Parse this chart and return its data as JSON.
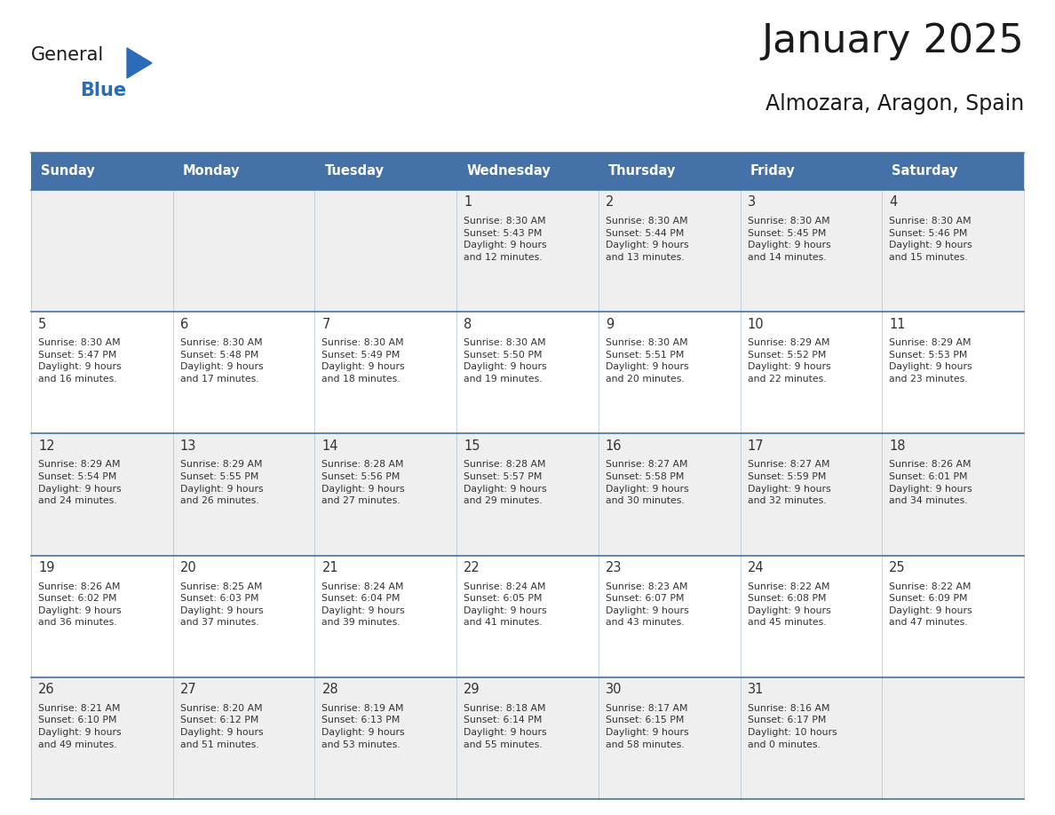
{
  "title": "January 2025",
  "subtitle": "Almozara, Aragon, Spain",
  "days_of_week": [
    "Sunday",
    "Monday",
    "Tuesday",
    "Wednesday",
    "Thursday",
    "Friday",
    "Saturday"
  ],
  "header_bg": "#4472a8",
  "header_text": "#ffffff",
  "cell_bg_odd": "#efefef",
  "cell_bg_even": "#ffffff",
  "cell_text": "#333333",
  "grid_line_color": "#4472a8",
  "title_color": "#1a1a1a",
  "subtitle_color": "#1a1a1a",
  "logo_general_color": "#1a1a1a",
  "logo_blue_color": "#2b6cb8",
  "logo_triangle_color": "#2b6cb8",
  "calendar": [
    [
      null,
      null,
      null,
      1,
      2,
      3,
      4
    ],
    [
      5,
      6,
      7,
      8,
      9,
      10,
      11
    ],
    [
      12,
      13,
      14,
      15,
      16,
      17,
      18
    ],
    [
      19,
      20,
      21,
      22,
      23,
      24,
      25
    ],
    [
      26,
      27,
      28,
      29,
      30,
      31,
      null
    ]
  ],
  "sunrise_data": {
    "1": "Sunrise: 8:30 AM\nSunset: 5:43 PM\nDaylight: 9 hours\nand 12 minutes.",
    "2": "Sunrise: 8:30 AM\nSunset: 5:44 PM\nDaylight: 9 hours\nand 13 minutes.",
    "3": "Sunrise: 8:30 AM\nSunset: 5:45 PM\nDaylight: 9 hours\nand 14 minutes.",
    "4": "Sunrise: 8:30 AM\nSunset: 5:46 PM\nDaylight: 9 hours\nand 15 minutes.",
    "5": "Sunrise: 8:30 AM\nSunset: 5:47 PM\nDaylight: 9 hours\nand 16 minutes.",
    "6": "Sunrise: 8:30 AM\nSunset: 5:48 PM\nDaylight: 9 hours\nand 17 minutes.",
    "7": "Sunrise: 8:30 AM\nSunset: 5:49 PM\nDaylight: 9 hours\nand 18 minutes.",
    "8": "Sunrise: 8:30 AM\nSunset: 5:50 PM\nDaylight: 9 hours\nand 19 minutes.",
    "9": "Sunrise: 8:30 AM\nSunset: 5:51 PM\nDaylight: 9 hours\nand 20 minutes.",
    "10": "Sunrise: 8:29 AM\nSunset: 5:52 PM\nDaylight: 9 hours\nand 22 minutes.",
    "11": "Sunrise: 8:29 AM\nSunset: 5:53 PM\nDaylight: 9 hours\nand 23 minutes.",
    "12": "Sunrise: 8:29 AM\nSunset: 5:54 PM\nDaylight: 9 hours\nand 24 minutes.",
    "13": "Sunrise: 8:29 AM\nSunset: 5:55 PM\nDaylight: 9 hours\nand 26 minutes.",
    "14": "Sunrise: 8:28 AM\nSunset: 5:56 PM\nDaylight: 9 hours\nand 27 minutes.",
    "15": "Sunrise: 8:28 AM\nSunset: 5:57 PM\nDaylight: 9 hours\nand 29 minutes.",
    "16": "Sunrise: 8:27 AM\nSunset: 5:58 PM\nDaylight: 9 hours\nand 30 minutes.",
    "17": "Sunrise: 8:27 AM\nSunset: 5:59 PM\nDaylight: 9 hours\nand 32 minutes.",
    "18": "Sunrise: 8:26 AM\nSunset: 6:01 PM\nDaylight: 9 hours\nand 34 minutes.",
    "19": "Sunrise: 8:26 AM\nSunset: 6:02 PM\nDaylight: 9 hours\nand 36 minutes.",
    "20": "Sunrise: 8:25 AM\nSunset: 6:03 PM\nDaylight: 9 hours\nand 37 minutes.",
    "21": "Sunrise: 8:24 AM\nSunset: 6:04 PM\nDaylight: 9 hours\nand 39 minutes.",
    "22": "Sunrise: 8:24 AM\nSunset: 6:05 PM\nDaylight: 9 hours\nand 41 minutes.",
    "23": "Sunrise: 8:23 AM\nSunset: 6:07 PM\nDaylight: 9 hours\nand 43 minutes.",
    "24": "Sunrise: 8:22 AM\nSunset: 6:08 PM\nDaylight: 9 hours\nand 45 minutes.",
    "25": "Sunrise: 8:22 AM\nSunset: 6:09 PM\nDaylight: 9 hours\nand 47 minutes.",
    "26": "Sunrise: 8:21 AM\nSunset: 6:10 PM\nDaylight: 9 hours\nand 49 minutes.",
    "27": "Sunrise: 8:20 AM\nSunset: 6:12 PM\nDaylight: 9 hours\nand 51 minutes.",
    "28": "Sunrise: 8:19 AM\nSunset: 6:13 PM\nDaylight: 9 hours\nand 53 minutes.",
    "29": "Sunrise: 8:18 AM\nSunset: 6:14 PM\nDaylight: 9 hours\nand 55 minutes.",
    "30": "Sunrise: 8:17 AM\nSunset: 6:15 PM\nDaylight: 9 hours\nand 58 minutes.",
    "31": "Sunrise: 8:16 AM\nSunset: 6:17 PM\nDaylight: 10 hours\nand 0 minutes."
  }
}
